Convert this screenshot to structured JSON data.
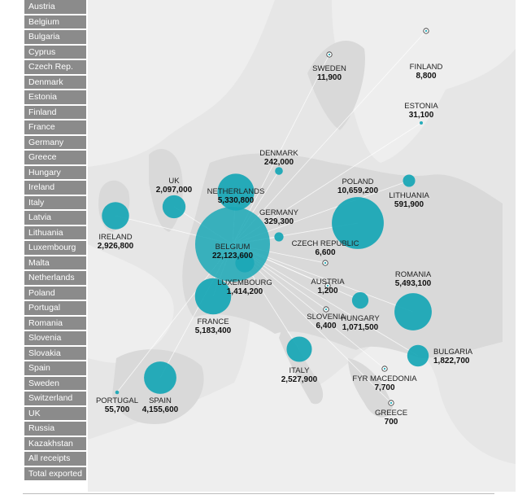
{
  "sidebar": {
    "items": [
      {
        "label": "Austria"
      },
      {
        "label": "Belgium"
      },
      {
        "label": "Bulgaria"
      },
      {
        "label": "Cyprus"
      },
      {
        "label": "Czech Rep."
      },
      {
        "label": "Denmark"
      },
      {
        "label": "Estonia"
      },
      {
        "label": "Finland"
      },
      {
        "label": "France"
      },
      {
        "label": "Germany"
      },
      {
        "label": "Greece"
      },
      {
        "label": "Hungary"
      },
      {
        "label": "Ireland"
      },
      {
        "label": "Italy"
      },
      {
        "label": "Latvia"
      },
      {
        "label": "Lithuania"
      },
      {
        "label": "Luxembourg"
      },
      {
        "label": "Malta"
      },
      {
        "label": "Netherlands"
      },
      {
        "label": "Poland"
      },
      {
        "label": "Portugal"
      },
      {
        "label": "Romania"
      },
      {
        "label": "Slovenia"
      },
      {
        "label": "Slovakia"
      },
      {
        "label": "Spain"
      },
      {
        "label": "Sweden"
      },
      {
        "label": "Switzerland"
      },
      {
        "label": "UK"
      },
      {
        "label": "Russia"
      },
      {
        "label": "Kazakhstan"
      },
      {
        "label": "All receipts"
      },
      {
        "label": "Total exported"
      }
    ]
  },
  "map": {
    "bubble_color": "#1ba8b6",
    "countries": [
      {
        "name": "SWEDEN",
        "value": "11,900",
        "amount": 11900
      },
      {
        "name": "FINLAND",
        "value": "8,800",
        "amount": 8800
      },
      {
        "name": "ESTONIA",
        "value": "31,100",
        "amount": 31100
      },
      {
        "name": "DENMARK",
        "value": "242,000",
        "amount": 242000
      },
      {
        "name": "UK",
        "value": "2,097,000",
        "amount": 2097000
      },
      {
        "name": "NETHERLANDS",
        "value": "5,330,800",
        "amount": 5330800
      },
      {
        "name": "POLAND",
        "value": "10,659,200",
        "amount": 10659200
      },
      {
        "name": "LITHUANIA",
        "value": "591,900",
        "amount": 591900
      },
      {
        "name": "IRELAND",
        "value": "2,926,800",
        "amount": 2926800
      },
      {
        "name": "GERMANY",
        "value": "329,300",
        "amount": 329300
      },
      {
        "name": "BELGIUM",
        "value": "22,123,600",
        "amount": 22123600
      },
      {
        "name": "CZECH REPUBLIC",
        "value": "6,600",
        "amount": 6600
      },
      {
        "name": "LUXEMBOURG",
        "value": "1,414,200",
        "amount": 1414200
      },
      {
        "name": "AUSTRIA",
        "value": "1,200",
        "amount": 1200
      },
      {
        "name": "ROMANIA",
        "value": "5,493,100",
        "amount": 5493100
      },
      {
        "name": "FRANCE",
        "value": "5,183,400",
        "amount": 5183400
      },
      {
        "name": "SLOVENIA",
        "value": "6,400",
        "amount": 6400
      },
      {
        "name": "HUNGARY",
        "value": "1,071,500",
        "amount": 1071500
      },
      {
        "name": "ITALY",
        "value": "2,527,900",
        "amount": 2527900
      },
      {
        "name": "BULGARIA",
        "value": "1,822,700",
        "amount": 1822700
      },
      {
        "name": "FYR MACEDONIA",
        "value": "7,700",
        "amount": 7700
      },
      {
        "name": "PORTUGAL",
        "value": "55,700",
        "amount": 55700
      },
      {
        "name": "SPAIN",
        "value": "4,155,600",
        "amount": 4155600
      },
      {
        "name": "GREECE",
        "value": "700",
        "amount": 700
      }
    ]
  }
}
